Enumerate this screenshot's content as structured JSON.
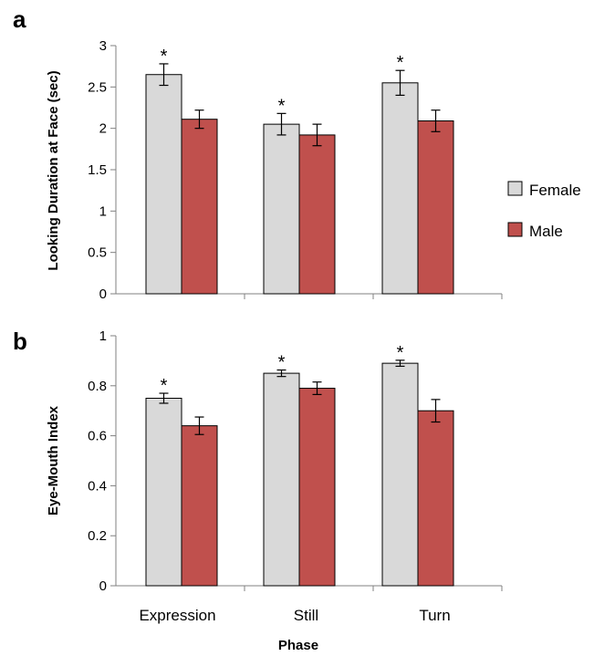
{
  "chart_data": [
    {
      "type": "bar",
      "panel_label": "a",
      "ylabel": "Looking Duration at Face (sec)",
      "xlabel": "",
      "categories": [
        "Expression",
        "Still",
        "Turn"
      ],
      "ylim": [
        0,
        3
      ],
      "yticks": [
        "0",
        "0.5",
        "1",
        "1.5",
        "2",
        "2.5",
        "3"
      ],
      "grid": false,
      "series": [
        {
          "name": "Female",
          "color": "#d9d9d9",
          "values": [
            2.65,
            2.05,
            2.55
          ],
          "errors": [
            0.13,
            0.13,
            0.15
          ],
          "significant": [
            true,
            true,
            true
          ]
        },
        {
          "name": "Male",
          "color": "#c0504d",
          "values": [
            2.11,
            1.92,
            2.09
          ],
          "errors": [
            0.11,
            0.13,
            0.13
          ],
          "significant": [
            false,
            false,
            false
          ]
        }
      ]
    },
    {
      "type": "bar",
      "panel_label": "b",
      "ylabel": "Eye-Mouth Index",
      "xlabel": "Phase",
      "categories": [
        "Expression",
        "Still",
        "Turn"
      ],
      "ylim": [
        0,
        1
      ],
      "yticks": [
        "0",
        "0.2",
        "0.4",
        "0.6",
        "0.8",
        "1"
      ],
      "grid": false,
      "series": [
        {
          "name": "Female",
          "color": "#d9d9d9",
          "values": [
            0.75,
            0.85,
            0.89
          ],
          "errors": [
            0.02,
            0.013,
            0.012
          ],
          "significant": [
            true,
            true,
            true
          ]
        },
        {
          "name": "Male",
          "color": "#c0504d",
          "values": [
            0.64,
            0.79,
            0.7
          ],
          "errors": [
            0.035,
            0.025,
            0.045
          ],
          "significant": [
            false,
            false,
            false
          ]
        }
      ]
    }
  ],
  "legend": {
    "placement": "right",
    "items": [
      {
        "label": "Female",
        "color": "#d9d9d9"
      },
      {
        "label": "Male",
        "color": "#c0504d"
      }
    ]
  },
  "significance_marker": "*"
}
